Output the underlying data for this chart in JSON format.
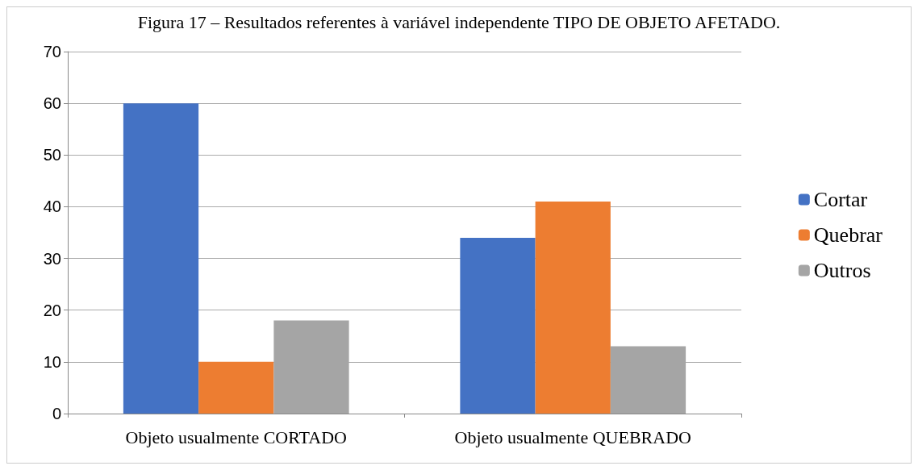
{
  "chart_data": {
    "type": "bar",
    "title": "Figura 17 – Resultados referentes à variável independente TIPO DE OBJETO AFETADO.",
    "categories": [
      "Objeto usualmente CORTADO",
      "Objeto usualmente QUEBRADO"
    ],
    "series": [
      {
        "name": "Cortar",
        "color": "#4472c4",
        "values": [
          60,
          34
        ]
      },
      {
        "name": "Quebrar",
        "color": "#ed7d31",
        "values": [
          10,
          41
        ]
      },
      {
        "name": "Outros",
        "color": "#a5a5a5",
        "values": [
          18,
          13
        ]
      }
    ],
    "ylim": [
      0,
      70
    ],
    "yticks": [
      0,
      10,
      20,
      30,
      40,
      50,
      60,
      70
    ],
    "grid": "y",
    "legend": "right"
  }
}
